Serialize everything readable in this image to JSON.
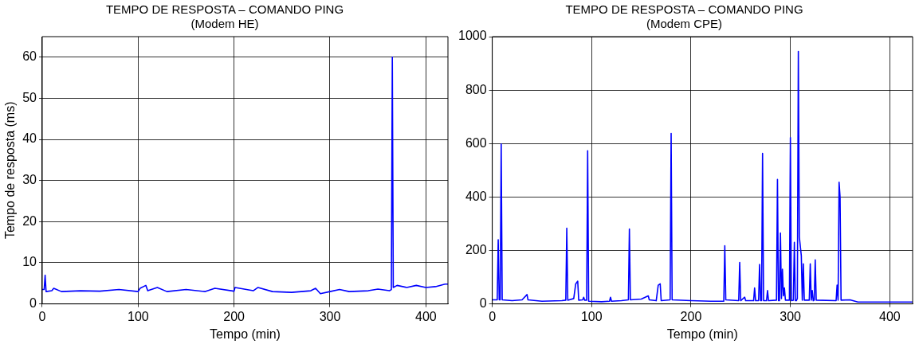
{
  "chart_data": [
    {
      "type": "line",
      "title": "TEMPO DE RESPOSTA – COMANDO PING",
      "subtitle": "(Modem HE)",
      "xlabel": "Tempo (min)",
      "ylabel": "Tempo de resposta (ms)",
      "xlim": [
        0,
        423
      ],
      "xticks": [
        0,
        100,
        200,
        300,
        400
      ],
      "ylim": [
        0,
        65
      ],
      "yticks": [
        0,
        10,
        20,
        30,
        40,
        50,
        60
      ],
      "grid": true,
      "marker": "none",
      "line_style": "solid",
      "x": [
        0,
        2,
        3,
        4,
        10,
        12,
        20,
        40,
        60,
        80,
        100,
        102,
        108,
        110,
        120,
        130,
        150,
        170,
        180,
        200,
        201,
        220,
        225,
        240,
        260,
        280,
        285,
        290,
        300,
        310,
        320,
        340,
        350,
        362,
        364,
        365,
        366,
        370,
        380,
        390,
        400,
        410,
        420,
        423
      ],
      "series": [
        {
          "color": "#0000ff",
          "values": [
            3.5,
            3.5,
            7,
            3,
            3.2,
            3.8,
            3,
            3.2,
            3.1,
            3.5,
            3,
            3.8,
            4.5,
            3.2,
            4,
            3,
            3.5,
            3,
            3.8,
            3.1,
            4,
            3.2,
            4,
            3,
            2.8,
            3.2,
            3.8,
            2.5,
            3,
            3.5,
            3,
            3.2,
            3.6,
            3.2,
            3.5,
            60,
            4,
            4.5,
            4,
            4.5,
            4,
            4.2,
            4.8,
            4.8
          ]
        }
      ]
    },
    {
      "type": "line",
      "title": "TEMPO DE RESPOSTA – COMANDO PING",
      "subtitle": "(Modem CPE)",
      "xlabel": "Tempo (min)",
      "xlim": [
        0,
        423
      ],
      "xticks": [
        0,
        100,
        200,
        300,
        400
      ],
      "ylim": [
        0,
        1000
      ],
      "yticks": [
        0,
        200,
        400,
        600,
        800,
        1000
      ],
      "grid": true,
      "marker": "none",
      "line_style": "solid",
      "x": [
        0,
        5,
        6,
        7,
        8,
        9,
        10,
        20,
        30,
        35,
        36,
        50,
        70,
        74,
        75,
        76,
        82,
        84,
        85,
        86,
        87,
        91,
        92,
        93,
        95,
        96,
        97,
        110,
        118,
        119,
        120,
        130,
        137,
        138,
        139,
        150,
        157,
        158,
        165,
        167,
        169,
        170,
        179,
        180,
        181,
        200,
        220,
        233,
        234,
        235,
        248,
        249,
        250,
        254,
        255,
        263,
        264,
        265,
        268,
        269,
        270,
        271,
        272,
        273,
        276,
        277,
        278,
        286,
        287,
        288,
        289,
        290,
        291,
        292,
        293,
        294,
        295,
        299,
        300,
        301,
        303,
        304,
        305,
        306,
        307,
        308,
        309,
        311,
        312,
        313,
        314,
        319,
        320,
        321,
        322,
        323,
        324,
        325,
        326,
        346,
        347,
        348,
        349,
        350,
        351,
        360,
        368,
        400,
        423
      ],
      "series": [
        {
          "color": "#0000ff",
          "values": [
            15,
            15,
            240,
            15,
            15,
            598,
            15,
            12,
            15,
            35,
            15,
            10,
            12,
            14,
            283,
            14,
            20,
            75,
            80,
            85,
            14,
            15,
            25,
            14,
            14,
            573,
            10,
            8,
            10,
            25,
            10,
            12,
            15,
            280,
            15,
            18,
            30,
            15,
            12,
            70,
            75,
            12,
            15,
            638,
            15,
            12,
            10,
            10,
            218,
            15,
            12,
            155,
            12,
            25,
            12,
            12,
            60,
            12,
            12,
            148,
            12,
            12,
            563,
            12,
            12,
            50,
            12,
            14,
            466,
            12,
            12,
            265,
            20,
            130,
            30,
            60,
            14,
            14,
            622,
            12,
            14,
            230,
            12,
            12,
            20,
            945,
            250,
            180,
            14,
            150,
            14,
            14,
            150,
            14,
            50,
            12,
            14,
            165,
            14,
            12,
            70,
            14,
            455,
            400,
            14,
            15,
            7,
            7,
            7
          ]
        }
      ]
    }
  ]
}
